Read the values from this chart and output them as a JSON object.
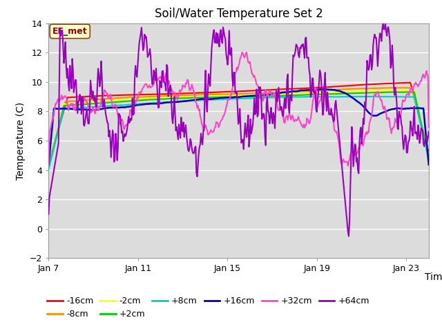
{
  "title": "Soil/Water Temperature Set 2",
  "xlabel": "Time",
  "ylabel": "Temperature (C)",
  "ylim": [
    -2,
    14
  ],
  "yticks": [
    -2,
    0,
    2,
    4,
    6,
    8,
    10,
    12,
    14
  ],
  "xlim": [
    0,
    17
  ],
  "xtick_positions": [
    0,
    4,
    8,
    12,
    16
  ],
  "xtick_labels": [
    "Jan 7",
    "Jan 11",
    "Jan 15",
    "Jan 19",
    "Jan 23"
  ],
  "annotation_text": "EE_met",
  "plot_bg_color": "#dcdcdc",
  "fig_bg_color": "#ffffff",
  "grid_color": "#ffffff",
  "series": {
    "-16cm": {
      "color": "#ff0000",
      "lw": 1.5,
      "zorder": 3
    },
    "-8cm": {
      "color": "#ff8c00",
      "lw": 1.5,
      "zorder": 3
    },
    "-2cm": {
      "color": "#ffff00",
      "lw": 1.5,
      "zorder": 3
    },
    "+2cm": {
      "color": "#00cc00",
      "lw": 1.5,
      "zorder": 3
    },
    "+8cm": {
      "color": "#00cccc",
      "lw": 1.5,
      "zorder": 3
    },
    "+16cm": {
      "color": "#0000bb",
      "lw": 1.8,
      "zorder": 4
    },
    "+32cm": {
      "color": "#ff44cc",
      "lw": 1.5,
      "zorder": 5
    },
    "+64cm": {
      "color": "#9900bb",
      "lw": 1.5,
      "zorder": 5
    }
  },
  "legend_ncol_row1": 6,
  "legend_ncol_row2": 2,
  "title_fontsize": 12,
  "tick_fontsize": 9,
  "label_fontsize": 10
}
